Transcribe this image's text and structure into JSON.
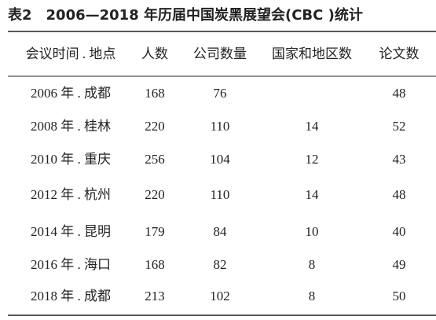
{
  "title": "表2　2006—2018 年历届中国炭黑展望会(CBC )统计",
  "table": {
    "header": [
      "会议时间 . 地点",
      "人数",
      "公司数量",
      "国家和地区数",
      "论文数"
    ],
    "rows": [
      [
        "2006 年 . 成都",
        168,
        76,
        null,
        48
      ],
      [
        "2008 年 . 桂林",
        220,
        110,
        14,
        52
      ],
      [
        "2010 年 . 重庆",
        256,
        104,
        12,
        43
      ],
      [
        "2012 年 . 杭州",
        220,
        110,
        14,
        48
      ],
      [
        "2014 年 . 昆明",
        179,
        84,
        10,
        40
      ],
      [
        "2016 年 . 海口",
        168,
        82,
        8,
        49
      ],
      [
        "2018 年 . 成都",
        213,
        102,
        8,
        50
      ]
    ]
  }
}
